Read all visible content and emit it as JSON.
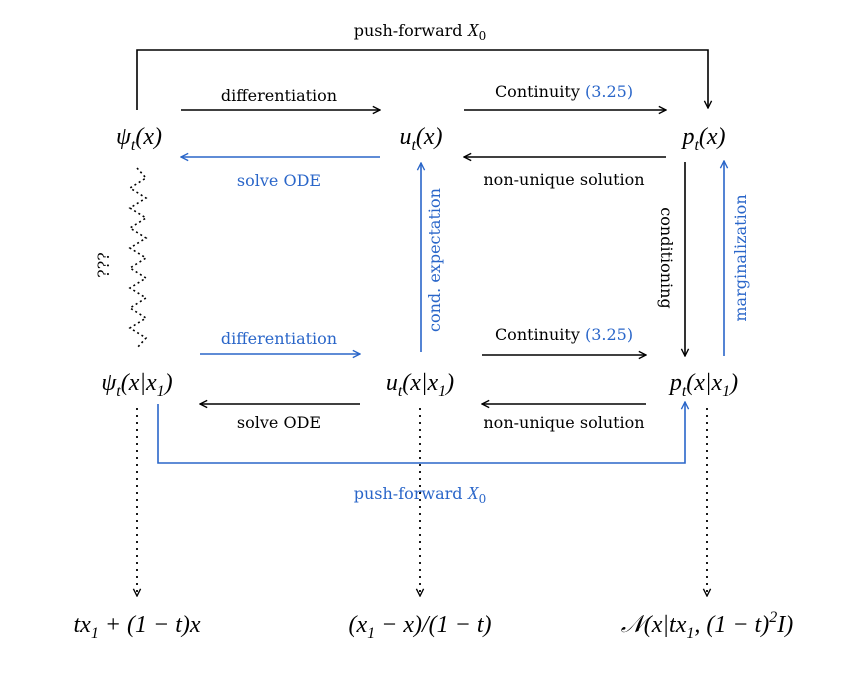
{
  "colors": {
    "black": "#000000",
    "blue": "#2a66c9"
  },
  "nodes": {
    "psi_t": {
      "base": "ψ",
      "sub": "t",
      "arg": "(x)"
    },
    "u_t": {
      "base": "u",
      "sub": "t",
      "arg": "(x)"
    },
    "p_t": {
      "base": "p",
      "sub": "t",
      "arg": "(x)"
    },
    "psi_cond": {
      "base": "ψ",
      "sub": "t",
      "arg_a": "(x|x",
      "arg_sub": "1",
      "arg_b": ")"
    },
    "u_cond": {
      "base": "u",
      "sub": "t",
      "arg_a": "(x|x",
      "arg_sub": "1",
      "arg_b": ")"
    },
    "p_cond": {
      "base": "p",
      "sub": "t",
      "arg_a": "(x|x",
      "arg_sub": "1",
      "arg_b": ")"
    }
  },
  "formulas": {
    "flow": {
      "a": "tx",
      "a_sub": "1",
      "b": " + (1 − t)x"
    },
    "field": {
      "a": "(x",
      "a_sub": "1",
      "b": " − x)/(1 − t)"
    },
    "prob": {
      "a": "𝒩(x|tx",
      "a_sub": "1",
      "b": ", (1 − t)",
      "sup": "2",
      "c": "I)"
    }
  },
  "labels": {
    "push_forward_top": {
      "text": "push-forward ",
      "var": "X",
      "var_sub": "0"
    },
    "differentiation_top": "differentiation",
    "continuity_top": {
      "text": "Continuity ",
      "ref": "(3.25)"
    },
    "solve_ode_top": "solve ODE",
    "non_unique_top": "non-unique solution",
    "unknown": "???",
    "cond_expectation": "cond. expectation",
    "conditioning": "conditioning",
    "marginalization": "marginalization",
    "differentiation_bottom": "differentiation",
    "continuity_bottom": {
      "text": "Continuity ",
      "ref": "(3.25)"
    },
    "solve_ode_bottom": "solve ODE",
    "non_unique_bottom": "non-unique solution",
    "push_forward_bottom": {
      "text": "push-forward ",
      "var": "X",
      "var_sub": "0"
    }
  }
}
